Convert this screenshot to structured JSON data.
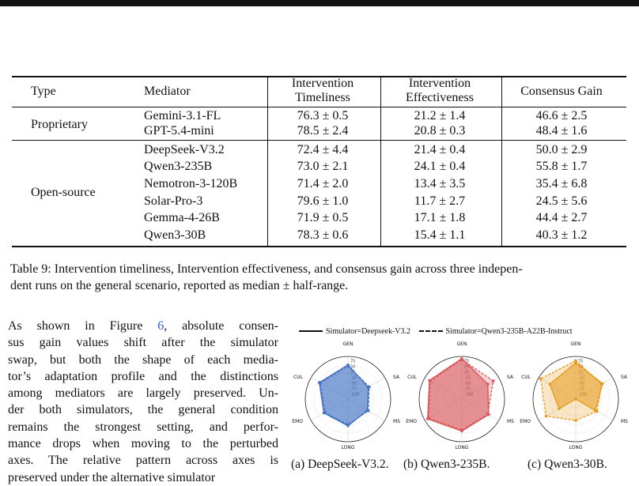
{
  "table": {
    "headers": {
      "type": "Type",
      "mediator": "Mediator",
      "timeliness_l1": "Intervention",
      "timeliness_l2": "Timeliness",
      "effectiveness_l1": "Intervention",
      "effectiveness_l2": "Effectiveness",
      "consensus": "Consensus Gain"
    },
    "groups": [
      {
        "type": "Proprietary",
        "rows": [
          {
            "mediator": "Gemini-3.1-FL",
            "timeliness": "76.3 ± 0.5",
            "effectiveness": "21.2 ± 1.4",
            "consensus": "46.6 ± 2.5"
          },
          {
            "mediator": "GPT-5.4-mini",
            "timeliness": "78.5 ± 2.4",
            "effectiveness": "20.8 ± 0.3",
            "consensus": "48.4 ± 1.6"
          }
        ]
      },
      {
        "type": "Open-source",
        "rows": [
          {
            "mediator": "DeepSeek-V3.2",
            "timeliness": "72.4 ± 4.4",
            "effectiveness": "21.4 ± 0.4",
            "consensus": "50.0 ± 2.9"
          },
          {
            "mediator": "Qwen3-235B",
            "timeliness": "73.0 ± 2.1",
            "effectiveness": "24.1 ± 0.4",
            "consensus": "55.8 ± 1.7"
          },
          {
            "mediator": "Nemotron-3-120B",
            "timeliness": "71.4 ± 2.0",
            "effectiveness": "13.4 ± 3.5",
            "consensus": "35.4 ± 6.8"
          },
          {
            "mediator": "Solar-Pro-3",
            "timeliness": "79.6 ± 1.0",
            "effectiveness": "11.7 ± 2.7",
            "consensus": "24.5 ± 5.6"
          },
          {
            "mediator": "Gemma-4-26B",
            "timeliness": "71.9 ± 0.5",
            "effectiveness": "17.1 ± 1.8",
            "consensus": "44.4 ± 2.7"
          },
          {
            "mediator": "Qwen3-30B",
            "timeliness": "78.3 ± 0.6",
            "effectiveness": "15.4 ± 1.1",
            "consensus": "40.3 ± 1.2"
          }
        ]
      }
    ]
  },
  "caption": {
    "line1": "Table 9: Intervention timeliness, Intervention effectiveness, and consensus gain across three indepen-",
    "line2": "dent runs on the general scenario, reported as median ± half-range."
  },
  "body": {
    "lines": [
      [
        "As shown in Figure ",
        "6",
        ", absolute consen-"
      ],
      [
        "sus gain values shift after the simulator"
      ],
      [
        "swap, but both the shape of each media-"
      ],
      [
        "tor’s adaptation profile and the distinctions"
      ],
      [
        "among mediators are largely preserved. Un-"
      ],
      [
        "der both simulators, the general condition"
      ],
      [
        "remains the strongest setting, and perfor-"
      ],
      [
        "mance drops when moving to the perturbed"
      ],
      [
        "axes. The relative pattern across axes is"
      ],
      [
        "preserved under the alternative simulator"
      ]
    ]
  },
  "figure": {
    "legend": {
      "solid": "Simulator=Deepseek-V3.2",
      "dashed": "Simulator=Qwen3-235B-A22B-Instruct"
    },
    "axes": [
      "GEN",
      "SA",
      "MS",
      "LONG",
      "EMO",
      "CUL"
    ],
    "ring_labels": [
      "75",
      "50",
      "25",
      "-25",
      "-50",
      "-75",
      "-100"
    ],
    "subcaptions": [
      "(a) DeepSeek-V3.2.",
      "(b) Qwen3-235B.",
      "(c) Qwen3-30B."
    ],
    "colors": {
      "blue": "#4472c4",
      "red": "#d9575b",
      "orange": "#e89a1e"
    }
  },
  "chart_data": [
    {
      "type": "radar",
      "title": "(a) DeepSeek-V3.2.",
      "axes": [
        "GEN",
        "SA",
        "MS",
        "LONG",
        "EMO",
        "CUL"
      ],
      "range": [
        -100,
        100
      ],
      "series": [
        {
          "name": "Simulator=Deepseek-V3.2",
          "values": [
            60,
            10,
            5,
            25,
            30,
            55
          ]
        },
        {
          "name": "Simulator=Qwen3-235B-A22B-Instruct",
          "values": [
            55,
            15,
            10,
            20,
            25,
            50
          ]
        }
      ]
    },
    {
      "type": "radar",
      "title": "(b) Qwen3-235B.",
      "axes": [
        "GEN",
        "SA",
        "MS",
        "LONG",
        "EMO",
        "CUL"
      ],
      "range": [
        -100,
        100
      ],
      "series": [
        {
          "name": "Simulator=Deepseek-V3.2",
          "values": [
            90,
            40,
            45,
            50,
            85,
            75
          ]
        },
        {
          "name": "Simulator=Qwen3-235B-A22B-Instruct",
          "values": [
            85,
            70,
            40,
            45,
            80,
            70
          ]
        }
      ]
    },
    {
      "type": "radar",
      "title": "(c) Qwen3-30B.",
      "axes": [
        "GEN",
        "SA",
        "MS",
        "LONG",
        "EMO",
        "CUL"
      ],
      "range": [
        -100,
        100
      ],
      "series": [
        {
          "name": "Simulator=Deepseek-V3.2",
          "values": [
            70,
            45,
            5,
            -100,
            -10,
            40
          ]
        },
        {
          "name": "Simulator=Qwen3-235B-A22B-Instruct",
          "values": [
            80,
            40,
            15,
            0,
            60,
            90
          ]
        }
      ]
    }
  ]
}
